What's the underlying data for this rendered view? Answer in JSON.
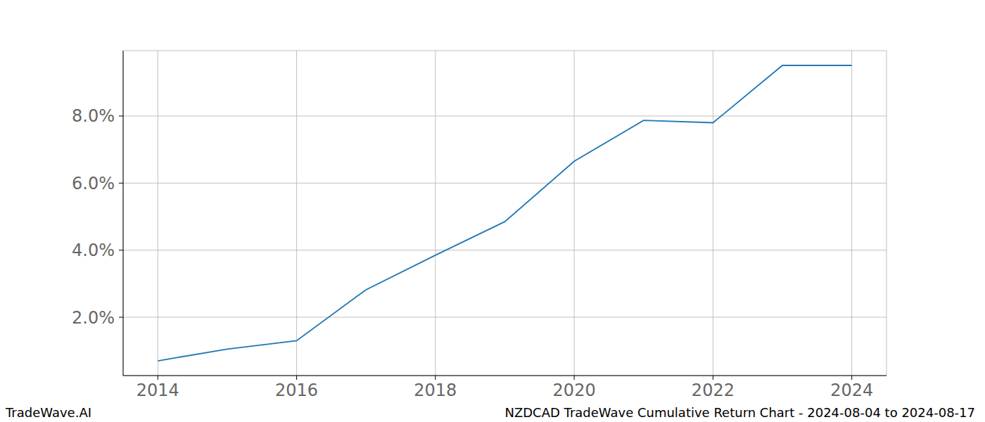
{
  "chart_data": {
    "type": "line",
    "x": [
      2014,
      2015,
      2016,
      2017,
      2018,
      2019,
      2020,
      2021,
      2022,
      2023,
      2024
    ],
    "values": [
      0.7,
      1.05,
      1.3,
      2.82,
      3.85,
      4.85,
      6.65,
      7.87,
      7.8,
      9.51,
      9.51
    ],
    "color": "#1f77b4",
    "xlim": [
      2013.5,
      2024.5
    ],
    "xticks": [
      2014,
      2016,
      2018,
      2020,
      2022,
      2024
    ],
    "ylim": [
      0.26,
      9.95
    ],
    "yticks": [
      {
        "value": 2,
        "label": "2.0%"
      },
      {
        "value": 4,
        "label": "4.0%"
      },
      {
        "value": 6,
        "label": "6.0%"
      },
      {
        "value": 8,
        "label": "8.0%"
      }
    ],
    "grid": true,
    "annotations": [
      "TradeWave.AI",
      "NZDCAD TradeWave Cumulative Return Chart - 2024-08-04 to 2024-08-17"
    ]
  }
}
